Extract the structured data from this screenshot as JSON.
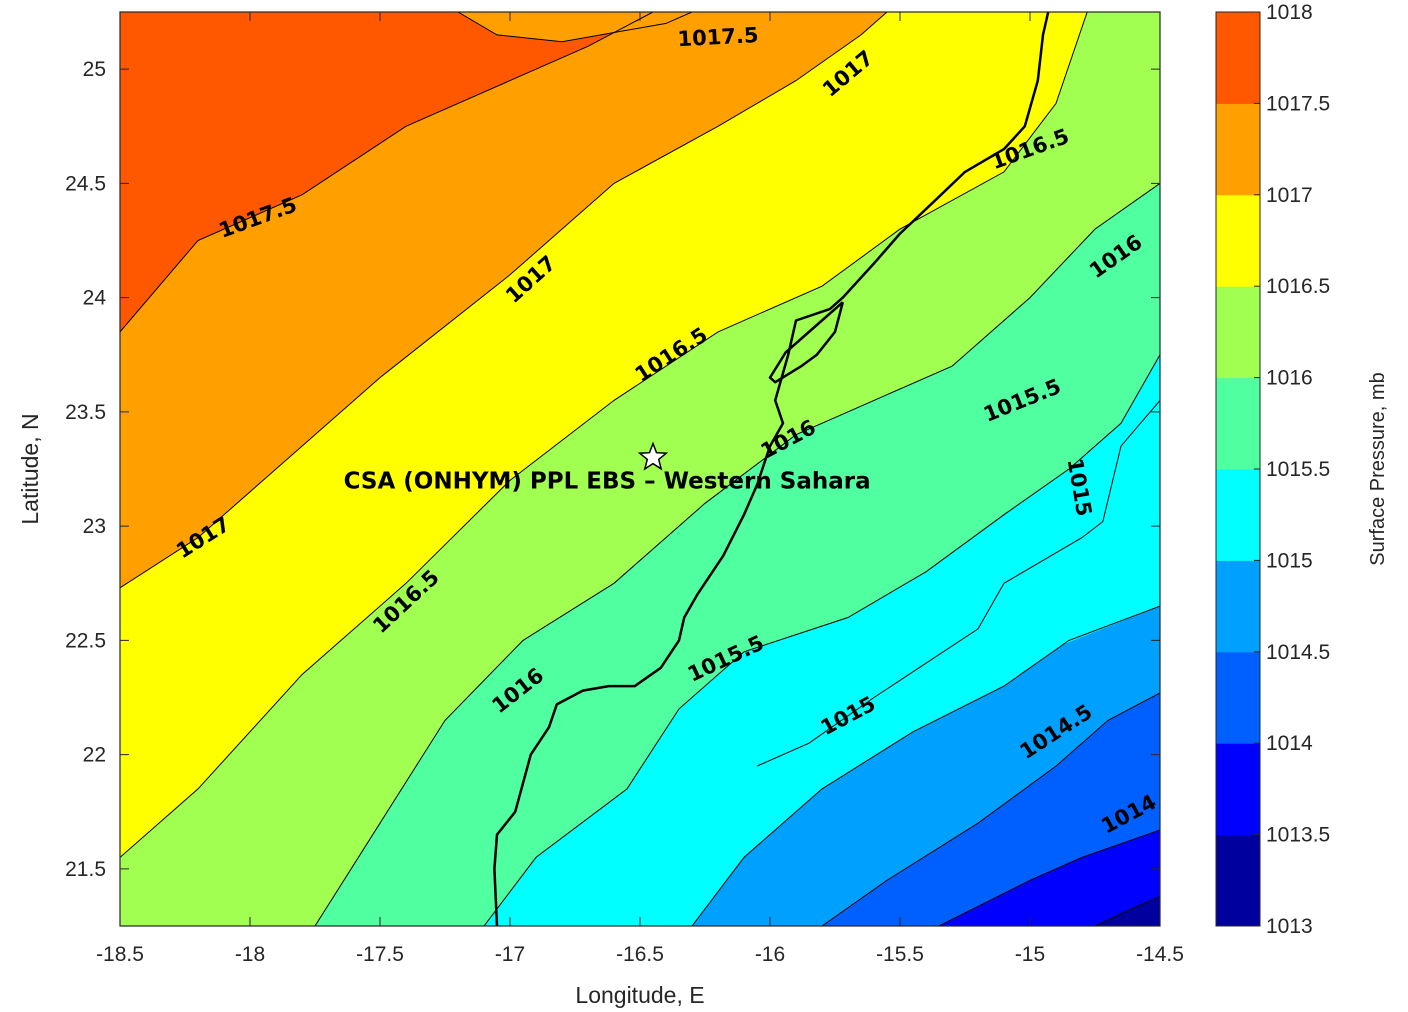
{
  "chart_data": {
    "type": "contour",
    "xlabel": "Longitude, E",
    "ylabel": "Latitude, N",
    "xlim": [
      -18.5,
      -14.5
    ],
    "ylim": [
      21.25,
      25.25
    ],
    "xticks": [
      -18.5,
      -18,
      -17.5,
      -17,
      -16.5,
      -16,
      -15.5,
      -15,
      -14.5
    ],
    "xtick_labels": [
      "-18.5",
      "-18",
      "-17.5",
      "-17",
      "-16.5",
      "-16",
      "-15.5",
      "-15",
      "-14.5"
    ],
    "yticks": [
      21.5,
      22,
      22.5,
      23,
      23.5,
      24,
      24.5,
      25
    ],
    "ytick_labels": [
      "21.5",
      "22",
      "22.5",
      "23",
      "23.5",
      "24",
      "24.5",
      "25"
    ],
    "grid": false,
    "colorbar": {
      "title": "Surface Pressure, mb",
      "levels": [
        1013,
        1013.5,
        1014,
        1014.5,
        1015,
        1015.5,
        1016,
        1016.5,
        1017,
        1017.5,
        1018
      ],
      "tick_labels": [
        "1013",
        "1013.5",
        "1014",
        "1014.5",
        "1015",
        "1015.5",
        "1016",
        "1016.5",
        "1017",
        "1017.5",
        "1018"
      ],
      "colors": [
        "#00009f",
        "#0000ff",
        "#0060ff",
        "#00a0ff",
        "#00ffff",
        "#50ffa0",
        "#a0ff50",
        "#ffff00",
        "#ffa000",
        "#ff5800",
        "#ff0000"
      ]
    },
    "contour_levels": [
      1013.5,
      1014,
      1014.5,
      1015,
      1015.5,
      1016,
      1016.5,
      1017,
      1017.5
    ],
    "contour_lines": [
      {
        "level": 1017.5,
        "points": [
          [
            -18.5,
            23.85
          ],
          [
            -18.2,
            24.25
          ],
          [
            -17.8,
            24.45
          ],
          [
            -17.4,
            24.75
          ],
          [
            -17.0,
            24.95
          ],
          [
            -16.7,
            25.1
          ],
          [
            -16.45,
            25.25
          ]
        ]
      },
      {
        "level": 1017.5,
        "points": [
          [
            -17.2,
            25.25
          ],
          [
            -17.05,
            25.15
          ],
          [
            -16.8,
            25.12
          ],
          [
            -16.4,
            25.2
          ],
          [
            -16.3,
            25.25
          ]
        ]
      },
      {
        "level": 1017,
        "points": [
          [
            -18.5,
            22.73
          ],
          [
            -18.2,
            22.95
          ],
          [
            -17.9,
            23.25
          ],
          [
            -17.5,
            23.65
          ],
          [
            -17.0,
            24.1
          ],
          [
            -16.6,
            24.5
          ],
          [
            -16.2,
            24.75
          ],
          [
            -15.9,
            24.95
          ],
          [
            -15.65,
            25.15
          ],
          [
            -15.55,
            25.25
          ]
        ]
      },
      {
        "level": 1016.5,
        "points": [
          [
            -18.5,
            21.55
          ],
          [
            -18.2,
            21.85
          ],
          [
            -17.8,
            22.35
          ],
          [
            -17.4,
            22.75
          ],
          [
            -17.0,
            23.2
          ],
          [
            -16.6,
            23.55
          ],
          [
            -16.2,
            23.85
          ],
          [
            -15.8,
            24.05
          ],
          [
            -15.5,
            24.3
          ],
          [
            -15.1,
            24.55
          ],
          [
            -14.9,
            24.85
          ],
          [
            -14.78,
            25.25
          ]
        ]
      },
      {
        "level": 1016,
        "points": [
          [
            -17.75,
            21.25
          ],
          [
            -17.5,
            21.7
          ],
          [
            -17.25,
            22.15
          ],
          [
            -16.95,
            22.5
          ],
          [
            -16.6,
            22.75
          ],
          [
            -16.25,
            23.1
          ],
          [
            -15.9,
            23.4
          ],
          [
            -15.6,
            23.55
          ],
          [
            -15.3,
            23.7
          ],
          [
            -15.0,
            24.0
          ],
          [
            -14.75,
            24.3
          ],
          [
            -14.5,
            24.5
          ]
        ]
      },
      {
        "level": 1015.5,
        "points": [
          [
            -17.1,
            21.25
          ],
          [
            -16.9,
            21.55
          ],
          [
            -16.55,
            21.85
          ],
          [
            -16.35,
            22.2
          ],
          [
            -16.1,
            22.45
          ],
          [
            -15.7,
            22.6
          ],
          [
            -15.4,
            22.8
          ],
          [
            -15.1,
            23.05
          ],
          [
            -14.85,
            23.25
          ],
          [
            -14.65,
            23.45
          ],
          [
            -14.5,
            23.75
          ]
        ]
      },
      {
        "level": 1015,
        "points": [
          [
            -16.3,
            21.25
          ],
          [
            -16.1,
            21.55
          ],
          [
            -15.8,
            21.85
          ],
          [
            -15.45,
            22.1
          ],
          [
            -15.1,
            22.3
          ],
          [
            -14.85,
            22.5
          ],
          [
            -14.5,
            22.65
          ]
        ]
      },
      {
        "level": 1015,
        "points": [
          [
            -14.5,
            23.55
          ],
          [
            -14.65,
            23.35
          ],
          [
            -14.72,
            23.02
          ],
          [
            -14.8,
            22.95
          ],
          [
            -14.95,
            22.85
          ],
          [
            -15.1,
            22.75
          ],
          [
            -15.2,
            22.55
          ],
          [
            -15.4,
            22.4
          ],
          [
            -15.6,
            22.25
          ],
          [
            -15.85,
            22.05
          ],
          [
            -16.05,
            21.95
          ]
        ]
      },
      {
        "level": 1014.5,
        "points": [
          [
            -15.8,
            21.25
          ],
          [
            -15.55,
            21.45
          ],
          [
            -15.2,
            21.7
          ],
          [
            -14.9,
            21.95
          ],
          [
            -14.7,
            22.15
          ],
          [
            -14.5,
            22.27
          ]
        ]
      },
      {
        "level": 1014,
        "points": [
          [
            -15.35,
            21.25
          ],
          [
            -15.0,
            21.45
          ],
          [
            -14.8,
            21.55
          ],
          [
            -14.5,
            21.67
          ]
        ]
      },
      {
        "level": 1013.5,
        "points": [
          [
            -14.75,
            21.25
          ],
          [
            -14.6,
            21.33
          ],
          [
            -14.5,
            21.38
          ]
        ]
      }
    ],
    "contour_labels": [
      {
        "text": "1017.5",
        "lon": -16.2,
        "lat": 25.14,
        "rotate": -3
      },
      {
        "text": "1017.5",
        "lon": -17.97,
        "lat": 24.35,
        "rotate": -20
      },
      {
        "text": "1017",
        "lon": -15.7,
        "lat": 24.98,
        "rotate": -40
      },
      {
        "text": "1017",
        "lon": -16.92,
        "lat": 24.08,
        "rotate": -42
      },
      {
        "text": "1017",
        "lon": -18.18,
        "lat": 22.95,
        "rotate": -32
      },
      {
        "text": "1016.5",
        "lon": -15.0,
        "lat": 24.65,
        "rotate": -20
      },
      {
        "text": "1016.5",
        "lon": -16.38,
        "lat": 23.75,
        "rotate": -33
      },
      {
        "text": "1016.5",
        "lon": -17.4,
        "lat": 22.67,
        "rotate": -43
      },
      {
        "text": "1016",
        "lon": -14.67,
        "lat": 24.18,
        "rotate": -35
      },
      {
        "text": "1016",
        "lon": -15.93,
        "lat": 23.38,
        "rotate": -28
      },
      {
        "text": "1016",
        "lon": -16.97,
        "lat": 22.28,
        "rotate": -38
      },
      {
        "text": "1015.5",
        "lon": -15.03,
        "lat": 23.55,
        "rotate": -22
      },
      {
        "text": "1015.5",
        "lon": -16.17,
        "lat": 22.42,
        "rotate": -25
      },
      {
        "text": "1015",
        "lon": -14.81,
        "lat": 23.17,
        "rotate": 80
      },
      {
        "text": "1015",
        "lon": -15.7,
        "lat": 22.17,
        "rotate": -28
      },
      {
        "text": "1014.5",
        "lon": -14.9,
        "lat": 22.1,
        "rotate": -33
      },
      {
        "text": "1014",
        "lon": -14.62,
        "lat": 21.74,
        "rotate": -28
      }
    ],
    "coastline": [
      [
        -17.05,
        21.25
      ],
      [
        -17.06,
        21.5
      ],
      [
        -17.05,
        21.65
      ],
      [
        -16.98,
        21.75
      ],
      [
        -16.92,
        22.0
      ],
      [
        -16.85,
        22.12
      ],
      [
        -16.82,
        22.22
      ],
      [
        -16.72,
        22.28
      ],
      [
        -16.62,
        22.3
      ],
      [
        -16.52,
        22.3
      ],
      [
        -16.42,
        22.38
      ],
      [
        -16.35,
        22.5
      ],
      [
        -16.33,
        22.6
      ],
      [
        -16.28,
        22.7
      ],
      [
        -16.18,
        22.87
      ],
      [
        -16.1,
        23.05
      ],
      [
        -16.05,
        23.18
      ],
      [
        -16.0,
        23.35
      ],
      [
        -15.95,
        23.45
      ],
      [
        -15.98,
        23.55
      ],
      [
        -15.93,
        23.75
      ],
      [
        -15.9,
        23.9
      ],
      [
        -15.77,
        23.95
      ],
      [
        -15.72,
        24.0
      ],
      [
        -15.6,
        24.15
      ],
      [
        -15.5,
        24.28
      ],
      [
        -15.37,
        24.42
      ],
      [
        -15.25,
        24.55
      ],
      [
        -15.1,
        24.65
      ],
      [
        -15.02,
        24.75
      ],
      [
        -14.97,
        24.95
      ],
      [
        -14.95,
        25.15
      ],
      [
        -14.93,
        25.25
      ]
    ],
    "peninsula": [
      [
        -15.72,
        23.98
      ],
      [
        -15.75,
        23.85
      ],
      [
        -15.82,
        23.75
      ],
      [
        -15.88,
        23.7
      ],
      [
        -15.98,
        23.63
      ],
      [
        -16.0,
        23.65
      ],
      [
        -15.94,
        23.76
      ],
      [
        -15.82,
        23.88
      ],
      [
        -15.75,
        23.95
      ],
      [
        -15.72,
        23.98
      ]
    ],
    "site_marker": {
      "lon": -16.45,
      "lat": 23.3
    },
    "annotation": {
      "text": "CSA (ONHYM) PPL EBS  – Western Sahara",
      "lon": -17.64,
      "lat": 23.2
    }
  }
}
